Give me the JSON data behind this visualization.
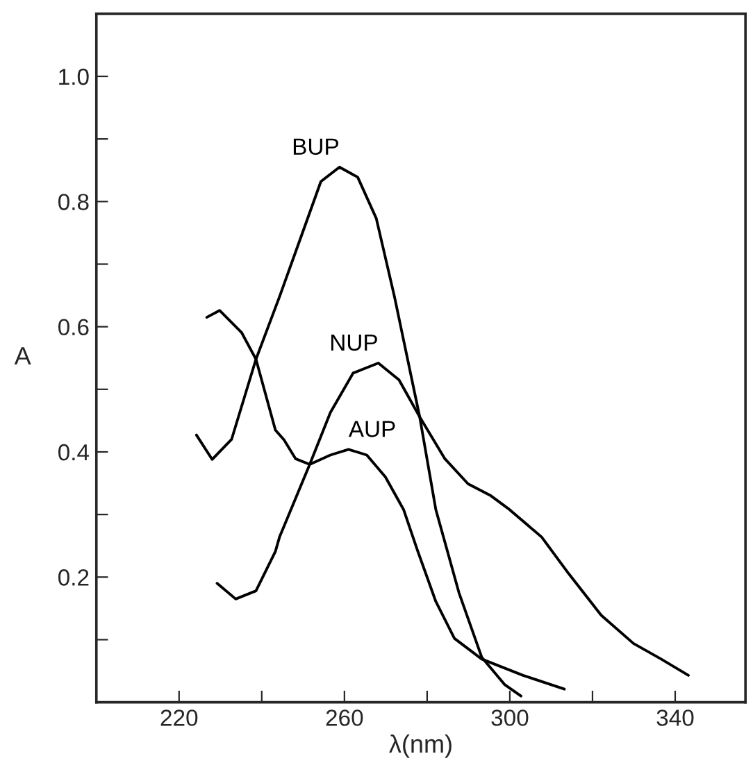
{
  "chart_data": {
    "type": "line",
    "xlabel": "λ(nm)",
    "ylabel": "A",
    "xlim": [
      200,
      357
    ],
    "ylim": [
      0,
      1.1
    ],
    "xticks": [
      220,
      {
        "value": 240,
        "label": null
      },
      260,
      {
        "value": 280,
        "label": null
      },
      300,
      {
        "value": 320,
        "label": null
      },
      340
    ],
    "yticks": [
      {
        "value": 0.1,
        "label": null
      },
      0.2,
      {
        "value": 0.3,
        "label": null
      },
      0.4,
      {
        "value": 0.5,
        "label": null
      },
      0.6,
      {
        "value": 0.7,
        "label": null
      },
      0.8,
      {
        "value": 0.9,
        "label": null
      },
      {
        "value": 1.0,
        "label": "1.0"
      }
    ],
    "grid": false,
    "marker": "none",
    "line_style": "solid",
    "series": [
      {
        "name": "AUP",
        "color": "#000000",
        "x": [
          226.7,
          229.8,
          235.1,
          238.6,
          243.3,
          245.4,
          248.2,
          251.6,
          256.6,
          261,
          265.4,
          269.9,
          274.3,
          277.7,
          282.1,
          286.6,
          293.2,
          303.2,
          313.2
        ],
        "values": [
          0.615,
          0.626,
          0.591,
          0.548,
          0.435,
          0.419,
          0.389,
          0.38,
          0.395,
          0.404,
          0.395,
          0.36,
          0.308,
          0.242,
          0.161,
          0.102,
          0.069,
          0.043,
          0.021
        ]
      },
      {
        "name": "BUP",
        "color": "#000000",
        "x": [
          224.2,
          228,
          232.7,
          238.6,
          244.3,
          249.9,
          254.3,
          258.8,
          263.2,
          267.7,
          272.1,
          278.2,
          282.1,
          287.7,
          293.2,
          298.8,
          302.7
        ],
        "values": [
          0.427,
          0.388,
          0.42,
          0.548,
          0.648,
          0.751,
          0.832,
          0.855,
          0.839,
          0.773,
          0.648,
          0.456,
          0.308,
          0.175,
          0.072,
          0.028,
          0.01
        ]
      },
      {
        "name": "NUP",
        "color": "#000000",
        "x": [
          229.2,
          233.7,
          238.6,
          243.3,
          244.3,
          251.6,
          256.6,
          262.1,
          268.2,
          273.2,
          278.2,
          284.3,
          289.9,
          295.4,
          299.9,
          307.7,
          314.3,
          322.1,
          329.9,
          336.6,
          343.2
        ],
        "values": [
          0.19,
          0.165,
          0.178,
          0.241,
          0.264,
          0.38,
          0.463,
          0.526,
          0.542,
          0.515,
          0.456,
          0.389,
          0.349,
          0.33,
          0.308,
          0.264,
          0.205,
          0.139,
          0.094,
          0.069,
          0.043
        ]
      }
    ]
  }
}
